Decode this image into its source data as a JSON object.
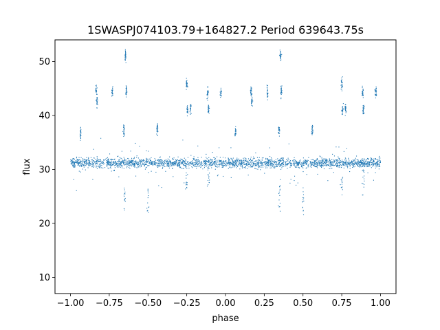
{
  "chart_data": {
    "type": "scatter",
    "title": "1SWASPJ074103.79+164827.2 Period 639643.75s",
    "xlabel": "phase",
    "ylabel": "flux",
    "xlim": [
      -1.1,
      1.1
    ],
    "ylim": [
      7,
      54
    ],
    "x_ticks": [
      -1.0,
      -0.75,
      -0.5,
      -0.25,
      0.0,
      0.25,
      0.5,
      0.75,
      1.0
    ],
    "x_tick_labels": [
      "−1.00",
      "−0.75",
      "−0.50",
      "−0.25",
      "0.00",
      "0.25",
      "0.50",
      "0.75",
      "1.00"
    ],
    "y_ticks": [
      10,
      20,
      30,
      40,
      50
    ],
    "y_tick_labels": [
      "10",
      "20",
      "30",
      "40",
      "50"
    ],
    "grid": false,
    "legend": "none",
    "marker_color": "#1f77b4",
    "baseline_flux": 31.2,
    "phase_range": [
      -1.0,
      1.0
    ],
    "clusters": [
      {
        "phase": -0.935,
        "flux": 36.8
      },
      {
        "phase": -0.835,
        "flux": 44.6
      },
      {
        "phase": -0.83,
        "flux": 42.8
      },
      {
        "phase": -0.73,
        "flux": 44.3
      },
      {
        "phase": -0.655,
        "flux": 37.3
      },
      {
        "phase": -0.645,
        "flux": 51.0
      },
      {
        "phase": -0.64,
        "flux": 44.5
      },
      {
        "phase": -0.44,
        "flux": 37.5
      },
      {
        "phase": -0.25,
        "flux": 45.8
      },
      {
        "phase": -0.245,
        "flux": 41.0
      },
      {
        "phase": -0.225,
        "flux": 41.3
      },
      {
        "phase": -0.115,
        "flux": 44.2
      },
      {
        "phase": -0.11,
        "flux": 41.2
      },
      {
        "phase": -0.03,
        "flux": 44.3
      },
      {
        "phase": 0.065,
        "flux": 36.8
      },
      {
        "phase": 0.165,
        "flux": 44.6
      },
      {
        "phase": 0.17,
        "flux": 42.8
      },
      {
        "phase": 0.27,
        "flux": 44.3
      },
      {
        "phase": 0.345,
        "flux": 37.3
      },
      {
        "phase": 0.355,
        "flux": 51.0
      },
      {
        "phase": 0.36,
        "flux": 44.5
      },
      {
        "phase": 0.56,
        "flux": 37.5
      },
      {
        "phase": 0.75,
        "flux": 45.8
      },
      {
        "phase": 0.755,
        "flux": 41.0
      },
      {
        "phase": 0.775,
        "flux": 41.3
      },
      {
        "phase": 0.885,
        "flux": 44.2
      },
      {
        "phase": 0.89,
        "flux": 41.2
      },
      {
        "phase": 0.97,
        "flux": 44.3
      }
    ],
    "dips": [
      {
        "phase": -0.65,
        "flux": 25.0
      },
      {
        "phase": -0.5,
        "flux": 24.0
      },
      {
        "phase": -0.25,
        "flux": 28.0
      },
      {
        "phase": -0.11,
        "flux": 29.0
      },
      {
        "phase": 0.35,
        "flux": 25.0
      },
      {
        "phase": 0.5,
        "flux": 24.0
      },
      {
        "phase": 0.75,
        "flux": 28.0
      },
      {
        "phase": 0.89,
        "flux": 29.0
      }
    ]
  }
}
